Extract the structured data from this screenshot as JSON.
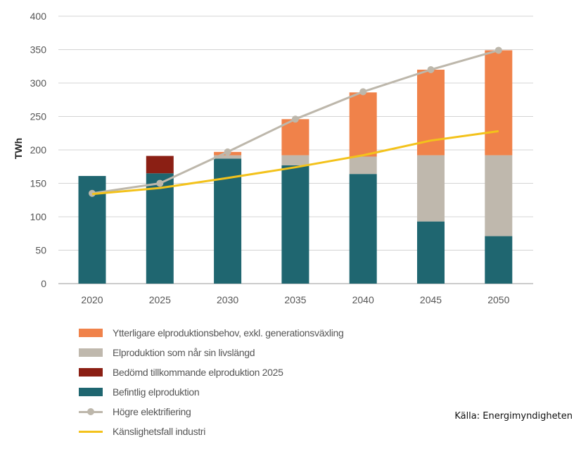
{
  "chart_data": {
    "type": "bar",
    "stacked": true,
    "categories": [
      "2020",
      "2025",
      "2030",
      "2035",
      "2040",
      "2045",
      "2050"
    ],
    "ylabel": "TWh",
    "ylim": [
      0,
      400
    ],
    "yticks": [
      0,
      50,
      100,
      150,
      200,
      250,
      300,
      350,
      400
    ],
    "grid": true,
    "series": [
      {
        "name": "Befintlig elproduktion",
        "color": "#1f6670",
        "values": [
          161,
          165,
          187,
          177,
          164,
          93,
          71
        ]
      },
      {
        "name": "Bedömd tillkommande elproduktion 2025",
        "color": "#8b1f14",
        "values": [
          0,
          26,
          0,
          0,
          0,
          0,
          0
        ]
      },
      {
        "name": "Elproduktion som når sin livslängd",
        "color": "#bfb8ad",
        "values": [
          0,
          0,
          5,
          15,
          26,
          99,
          121
        ]
      },
      {
        "name": "Ytterligare elproduktionsbehov, exkl. generationsväxling",
        "color": "#f0824a",
        "values": [
          0,
          0,
          5,
          54,
          96,
          128,
          157
        ]
      }
    ],
    "lines": [
      {
        "name": "Högre elektrifiering",
        "color": "#bdb7ab",
        "markers": true,
        "values": [
          135,
          150,
          197,
          246,
          287,
          320,
          349
        ]
      },
      {
        "name": "Känslighetsfall industri",
        "color": "#f3c21b",
        "markers": false,
        "values": [
          134,
          143,
          158,
          174,
          192,
          214,
          228
        ]
      }
    ]
  },
  "legend": [
    {
      "label": "Ytterligare elproduktionsbehov, exkl. generationsväxling",
      "kind": "box",
      "color": "#f0824a"
    },
    {
      "label": "Elproduktion som når sin livslängd",
      "kind": "box",
      "color": "#bfb8ad"
    },
    {
      "label": "Bedömd tillkommande elproduktion 2025",
      "kind": "box",
      "color": "#8b1f14"
    },
    {
      "label": "Befintlig elproduktion",
      "kind": "box",
      "color": "#1f6670"
    },
    {
      "label": "Högre elektrifiering",
      "kind": "line-marker",
      "color": "#bdb7ab"
    },
    {
      "label": "Känslighetsfall industri",
      "kind": "line",
      "color": "#f3c21b"
    }
  ],
  "source": "Källa: Energimyndigheten"
}
